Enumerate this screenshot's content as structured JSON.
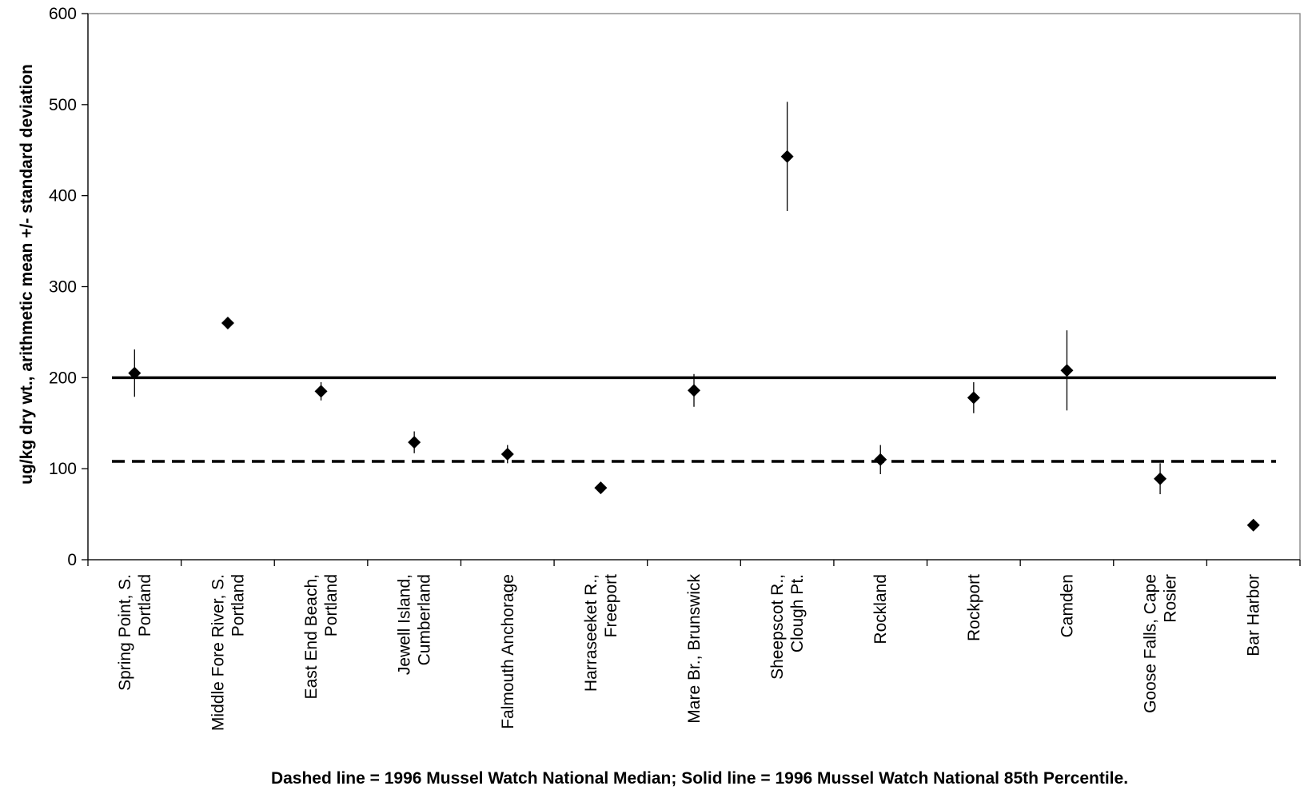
{
  "chart_data": {
    "type": "scatter",
    "title": "",
    "xlabel": "",
    "ylabel": "ug/kg dry wt., arithmetic mean +/- standard deviation",
    "ylim": [
      0,
      600
    ],
    "yticks": [
      0,
      100,
      200,
      300,
      400,
      500,
      600
    ],
    "grid": false,
    "categories": [
      [
        "Spring Point, S.",
        "Portland"
      ],
      [
        "Middle Fore River, S.",
        "Portland"
      ],
      [
        "East End Beach,",
        "Portland"
      ],
      [
        "Jewell Island,",
        "Cumberland"
      ],
      [
        "Falmouth Anchorage"
      ],
      [
        "Harraseeket R.,",
        "Freeport"
      ],
      [
        "Mare Br., Brunswick"
      ],
      [
        "Sheepscot R.,",
        "Clough Pt."
      ],
      [
        "Rockland"
      ],
      [
        "Rockport"
      ],
      [
        "Camden"
      ],
      [
        "Goose Falls, Cape",
        "Rosier"
      ],
      [
        "Bar Harbor"
      ]
    ],
    "series": [
      {
        "marker": "diamond",
        "values": [
          205,
          260,
          185,
          129,
          116,
          79,
          186,
          443,
          110,
          178,
          208,
          89,
          38
        ],
        "error": [
          26,
          0,
          10,
          12,
          10,
          0,
          18,
          60,
          16,
          17,
          44,
          17,
          0
        ]
      }
    ],
    "reference_lines": [
      {
        "style": "dashed",
        "value": 108
      },
      {
        "style": "solid",
        "value": 200
      }
    ],
    "note": "Dashed line = 1996 Mussel Watch National Median; Solid line = 1996 Mussel Watch National 85th Percentile."
  }
}
